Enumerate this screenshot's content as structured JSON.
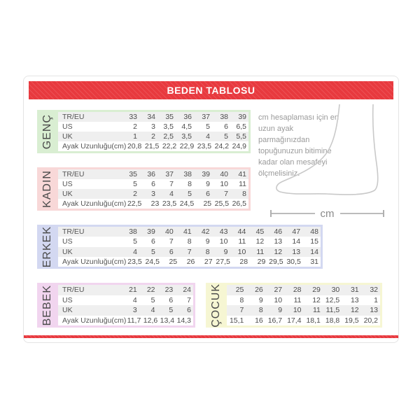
{
  "header": {
    "title": "BEDEN TABLOSU",
    "accent_color": "#e8393e"
  },
  "row_labels": [
    "TR/EU",
    "US",
    "UK",
    "Ayak Uzunluğu(cm)"
  ],
  "sections": [
    {
      "id": "genc",
      "label": "GENÇ",
      "color": "#d9eed2",
      "show_row_labels": true,
      "rows": [
        [
          "33",
          "34",
          "35",
          "36",
          "37",
          "38",
          "39"
        ],
        [
          "2",
          "3",
          "3,5",
          "4,5",
          "5",
          "6",
          "6,5"
        ],
        [
          "1",
          "2",
          "2,5",
          "3,5",
          "4",
          "5",
          "5,5"
        ],
        [
          "20,8",
          "21,5",
          "22,2",
          "22,9",
          "23,5",
          "24,2",
          "24,9"
        ]
      ]
    },
    {
      "id": "kadin",
      "label": "KADIN",
      "color": "#f8d8d8",
      "show_row_labels": true,
      "rows": [
        [
          "35",
          "36",
          "37",
          "38",
          "39",
          "40",
          "41"
        ],
        [
          "5",
          "6",
          "7",
          "8",
          "9",
          "10",
          "11"
        ],
        [
          "2",
          "3",
          "4",
          "5",
          "6",
          "7",
          "8"
        ],
        [
          "22,5",
          "23",
          "23,5",
          "24,5",
          "25",
          "25,5",
          "26,5"
        ]
      ]
    },
    {
      "id": "erkek",
      "label": "ERKEK",
      "color": "#d3d8f1",
      "show_row_labels": true,
      "rows": [
        [
          "38",
          "39",
          "40",
          "41",
          "42",
          "43",
          "44",
          "45",
          "46",
          "47",
          "48"
        ],
        [
          "5",
          "6",
          "7",
          "8",
          "9",
          "10",
          "11",
          "12",
          "13",
          "14",
          "15"
        ],
        [
          "4",
          "5",
          "6",
          "7",
          "8",
          "9",
          "10",
          "11",
          "12",
          "13",
          "14"
        ],
        [
          "23,5",
          "24,5",
          "25",
          "26",
          "27",
          "27,5",
          "28",
          "29",
          "29,5",
          "30,5",
          "31"
        ]
      ]
    },
    {
      "id": "bebek",
      "label": "BEBEK",
      "color": "#f1d5ef",
      "show_row_labels": true,
      "rows": [
        [
          "21",
          "22",
          "23",
          "24"
        ],
        [
          "4",
          "5",
          "6",
          "7"
        ],
        [
          "3",
          "4",
          "5",
          "6"
        ],
        [
          "11,7",
          "12,6",
          "13,4",
          "14,3"
        ]
      ]
    },
    {
      "id": "cocuk",
      "label": "ÇOCUK",
      "color": "#f6f6d3",
      "show_row_labels": false,
      "rows": [
        [
          "25",
          "26",
          "27",
          "28",
          "29",
          "30",
          "31",
          "32"
        ],
        [
          "8",
          "9",
          "10",
          "11",
          "12",
          "12,5",
          "13",
          "1"
        ],
        [
          "7",
          "8",
          "9",
          "10",
          "11",
          "11,5",
          "12",
          "13"
        ],
        [
          "15,1",
          "16",
          "16,7",
          "17,4",
          "18,1",
          "18,8",
          "19,5",
          "20,2"
        ]
      ]
    }
  ],
  "sidebar": {
    "note": "cm hesaplaması için en uzun ayak parmağınızdan topuğunuzun bitimine kadar olan mesafeyi ölçmelisiniz.",
    "measure_label": "cm"
  }
}
